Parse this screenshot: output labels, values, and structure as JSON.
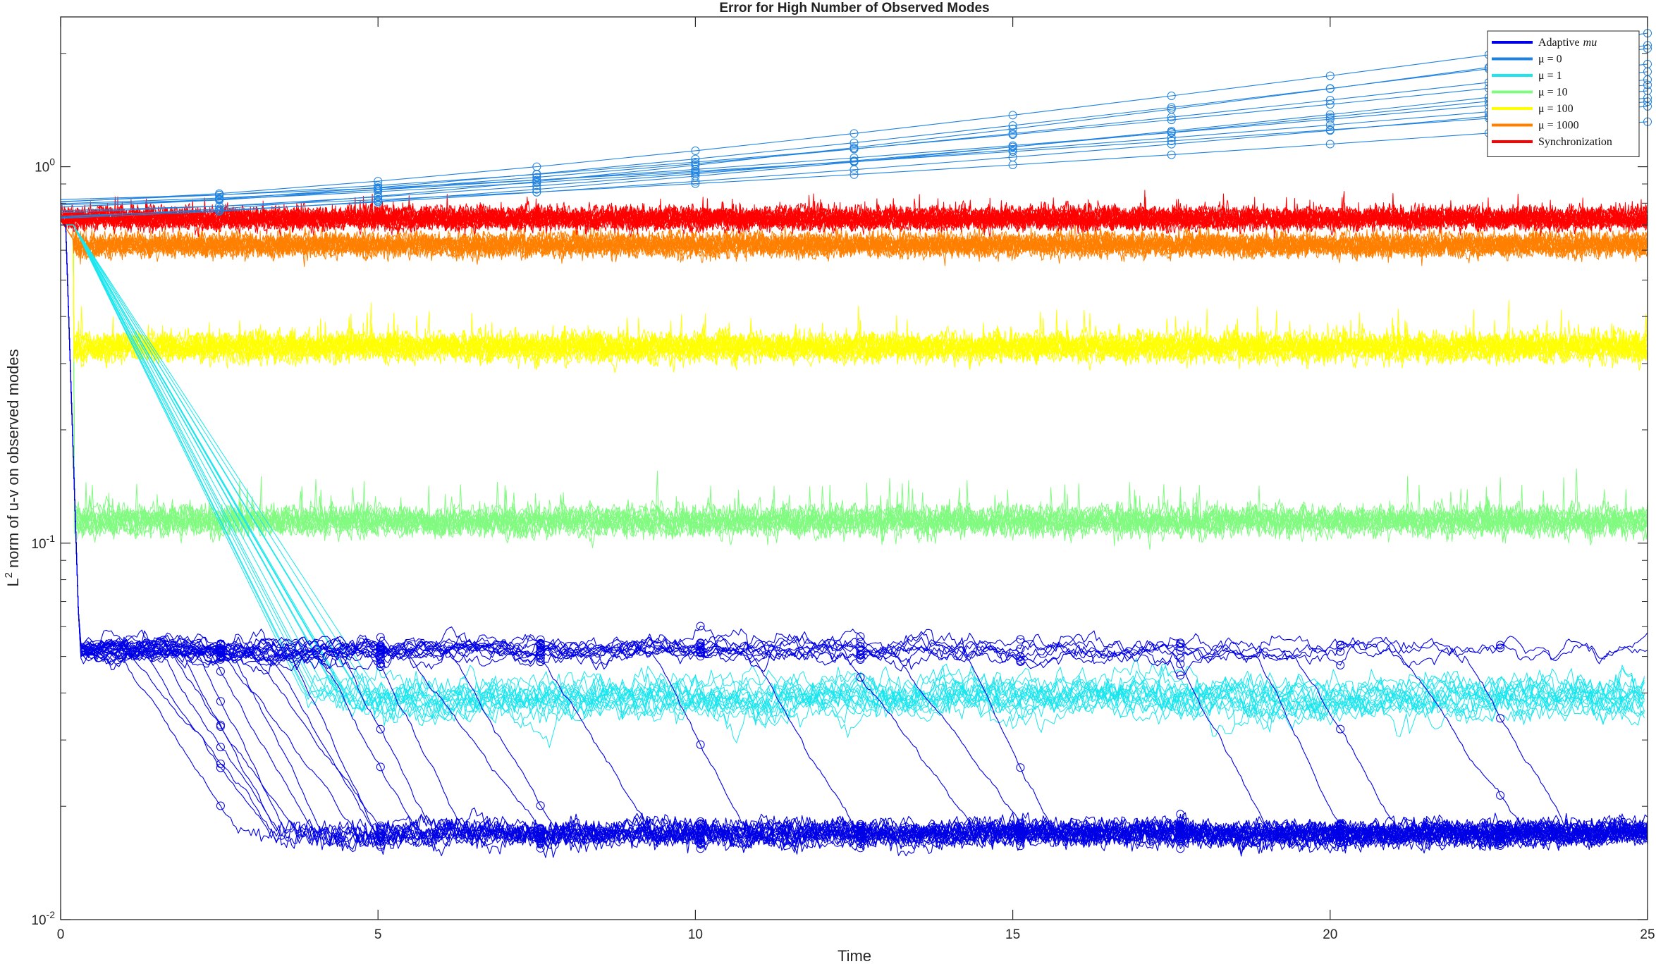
{
  "chart_data": {
    "type": "line",
    "title": "Error for High Number of Observed Modes",
    "xlabel": "Time",
    "ylabel_main": "L",
    "ylabel_sup": "2",
    "ylabel_rest": " norm of u-v on observed modes",
    "xlim": [
      0,
      25
    ],
    "ylim": [
      0.01,
      2.5
    ],
    "yscale": "log",
    "x_ticks": [
      0,
      5,
      10,
      15,
      20,
      25
    ],
    "x_tick_labels": [
      "0",
      "5",
      "10",
      "15",
      "20",
      "25"
    ],
    "y_ticks": [
      0.01,
      0.1,
      1
    ],
    "y_tick_labels": [
      {
        "base": "10",
        "exp": "-2"
      },
      {
        "base": "10",
        "exp": "-1"
      },
      {
        "base": "10",
        "exp": "0"
      }
    ],
    "legend_position": "top-right",
    "series": [
      {
        "name": "Adaptive mu",
        "legend_label": "Adaptive",
        "legend_label_italic": "mu",
        "color": "#0000e6",
        "level_low": 0.017,
        "level_high": 0.052
      },
      {
        "name": "μ = 0",
        "legend_label": "μ = 0",
        "color": "#1e82e0",
        "start": 0.8,
        "end_range": [
          1.3,
          2.4
        ]
      },
      {
        "name": "μ = 1",
        "legend_label": "μ = 1",
        "color": "#19e6ee",
        "level": 0.039
      },
      {
        "name": "μ = 10",
        "legend_label": "μ = 10",
        "color": "#80fb80",
        "level": 0.115
      },
      {
        "name": "μ = 100",
        "legend_label": "μ = 100",
        "color": "#ffff00",
        "level": 0.33
      },
      {
        "name": "μ = 1000",
        "legend_label": "μ = 1000",
        "color": "#ff8000",
        "level": 0.62
      },
      {
        "name": "Synchronization",
        "legend_label": "Synchronization",
        "color": "#ff0000",
        "level": 0.73
      }
    ]
  }
}
